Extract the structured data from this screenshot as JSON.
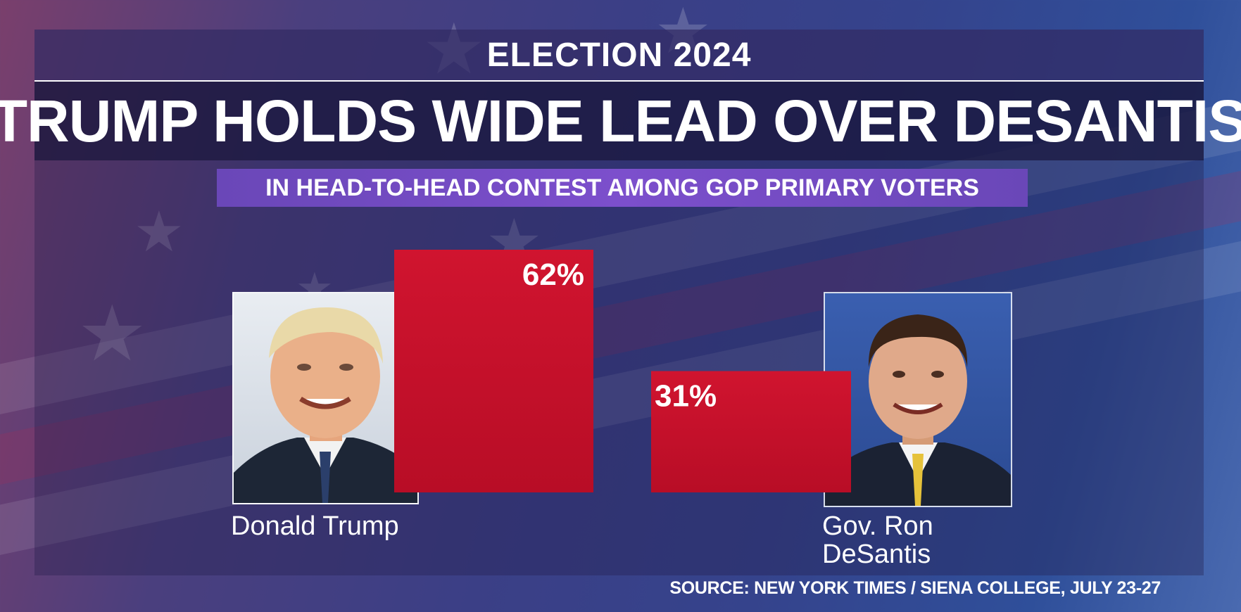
{
  "header": {
    "kicker": "ELECTION 2024",
    "headline": "TRUMP HOLDS WIDE LEAD OVER DESANTIS",
    "subtitle": "IN HEAD-TO-HEAD CONTEST AMONG GOP PRIMARY VOTERS"
  },
  "candidates": [
    {
      "name": "Donald Trump",
      "photo_icon": "trump-portrait-icon"
    },
    {
      "name_line1": "Gov. Ron",
      "name_line2": "DeSantis",
      "photo_icon": "desantis-portrait-icon"
    }
  ],
  "chart_data": {
    "type": "bar",
    "categories": [
      "Donald Trump",
      "Gov. Ron DeSantis"
    ],
    "values": [
      62,
      31
    ],
    "data_labels": [
      "62%",
      "31%"
    ],
    "title": "TRUMP HOLDS WIDE LEAD OVER DESANTIS",
    "subtitle": "IN HEAD-TO-HEAD CONTEST AMONG GOP PRIMARY VOTERS",
    "ylim": [
      0,
      62
    ],
    "grid": false,
    "bar_color": "#c8102e"
  },
  "source": "SOURCE: NEW YORK TIMES / SIENA COLLEGE, JULY 23-27",
  "colors": {
    "bar": "#c8102e",
    "subtitle_band": "#7c4fcc",
    "headline_band": "#1e1a4a"
  }
}
